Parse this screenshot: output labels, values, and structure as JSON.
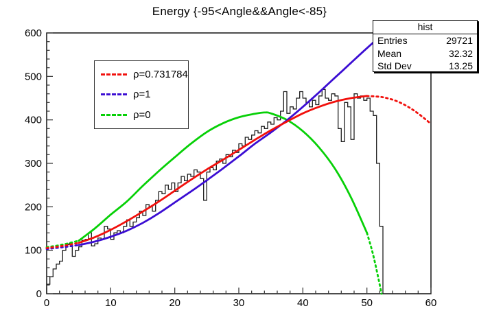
{
  "title": "Energy {-95<Angle&&Angle<-85}",
  "stats_box": {
    "title": "hist",
    "rows": [
      {
        "label": "Entries",
        "value": "29721"
      },
      {
        "label": "Mean",
        "value": "32.32"
      },
      {
        "label": "Std Dev",
        "value": "13.25"
      }
    ]
  },
  "legend": {
    "entries": [
      {
        "label": "ρ=0.731784",
        "color": "#f1100c",
        "style": "dashed"
      },
      {
        "label": "ρ=1",
        "color": "#3b0dd3",
        "style": "dashed"
      },
      {
        "label": "ρ=0",
        "color": "#07d007",
        "style": "dashed"
      }
    ]
  },
  "chart_data": {
    "type": "line",
    "title": "Energy {-95<Angle&&Angle<-85}",
    "xlabel": "",
    "ylabel": "",
    "xlim": [
      0,
      60
    ],
    "ylim": [
      0,
      600
    ],
    "xticks": [
      0,
      10,
      20,
      30,
      40,
      50,
      60
    ],
    "yticks": [
      0,
      100,
      200,
      300,
      400,
      500,
      600
    ],
    "x_minor_step": 2,
    "y_minor_step": 20,
    "grid": false,
    "legend_position": "upper-left",
    "histogram": {
      "name": "hist",
      "color": "#1c1c1c",
      "start": 0,
      "bin_width": 0.5,
      "values": [
        22,
        39,
        57,
        68,
        75,
        100,
        113,
        116,
        86,
        100,
        108,
        123,
        125,
        140,
        110,
        115,
        128,
        125,
        155,
        149,
        125,
        140,
        145,
        140,
        155,
        170,
        155,
        165,
        175,
        190,
        180,
        205,
        200,
        190,
        215,
        235,
        230,
        250,
        240,
        255,
        235,
        255,
        270,
        260,
        275,
        270,
        285,
        280,
        265,
        215,
        280,
        290,
        285,
        305,
        310,
        300,
        320,
        315,
        330,
        325,
        345,
        340,
        360,
        355,
        365,
        375,
        370,
        385,
        380,
        395,
        390,
        405,
        400,
        420,
        465,
        415,
        430,
        425,
        450,
        465,
        450,
        440,
        430,
        445,
        435,
        455,
        470,
        450,
        445,
        460,
        455,
        380,
        350,
        440,
        430,
        355,
        460,
        450,
        455,
        445,
        450,
        420,
        410,
        300,
        155
      ]
    },
    "curves": [
      {
        "name": "rho-0",
        "label": "ρ=0",
        "color": "#07d007",
        "solid_range": [
          5,
          50
        ],
        "points": [
          [
            0,
            107
          ],
          [
            2.5,
            113
          ],
          [
            5,
            122
          ],
          [
            7.5,
            150
          ],
          [
            10,
            182
          ],
          [
            12.5,
            212
          ],
          [
            15,
            248
          ],
          [
            17.5,
            282
          ],
          [
            20,
            314
          ],
          [
            22.5,
            345
          ],
          [
            25,
            372
          ],
          [
            27.5,
            392
          ],
          [
            30,
            406
          ],
          [
            32.5,
            414
          ],
          [
            34,
            417
          ],
          [
            35,
            415
          ],
          [
            37.5,
            400
          ],
          [
            40,
            374
          ],
          [
            42.5,
            337
          ],
          [
            45,
            288
          ],
          [
            47.5,
            222
          ],
          [
            50,
            140
          ],
          [
            51,
            88
          ],
          [
            52.3,
            0
          ]
        ]
      },
      {
        "name": "rho-1",
        "label": "ρ=1",
        "color": "#3b0dd3",
        "solid_range": [
          5,
          51
        ],
        "points": [
          [
            0,
            103
          ],
          [
            2.5,
            107
          ],
          [
            5,
            112
          ],
          [
            7.5,
            120
          ],
          [
            10,
            131
          ],
          [
            12.5,
            145
          ],
          [
            15,
            163
          ],
          [
            17.5,
            185
          ],
          [
            20,
            210
          ],
          [
            22.5,
            235
          ],
          [
            25,
            261
          ],
          [
            27.5,
            288
          ],
          [
            30,
            316
          ],
          [
            32.5,
            345
          ],
          [
            35,
            371
          ],
          [
            37.5,
            399
          ],
          [
            40,
            430
          ],
          [
            42.5,
            463
          ],
          [
            45,
            497
          ],
          [
            47.5,
            531
          ],
          [
            50,
            565
          ],
          [
            51,
            578
          ],
          [
            52.6,
            598
          ]
        ]
      },
      {
        "name": "rho-0731784",
        "label": "ρ=0.731784",
        "color": "#f1100c",
        "solid_range": [
          5,
          50
        ],
        "points": [
          [
            0,
            105
          ],
          [
            2.5,
            110
          ],
          [
            5,
            117
          ],
          [
            7.5,
            130
          ],
          [
            10,
            147
          ],
          [
            12.5,
            167
          ],
          [
            15,
            189
          ],
          [
            17.5,
            212
          ],
          [
            20,
            237
          ],
          [
            22.5,
            262
          ],
          [
            25,
            286
          ],
          [
            27.5,
            308
          ],
          [
            30,
            331
          ],
          [
            32.5,
            354
          ],
          [
            35,
            376
          ],
          [
            37.5,
            396
          ],
          [
            40,
            415
          ],
          [
            42.5,
            430
          ],
          [
            45,
            442
          ],
          [
            47.5,
            450
          ],
          [
            50,
            455
          ],
          [
            52.5,
            452
          ],
          [
            55,
            441
          ],
          [
            57.5,
            420
          ],
          [
            60,
            391
          ]
        ]
      }
    ]
  }
}
